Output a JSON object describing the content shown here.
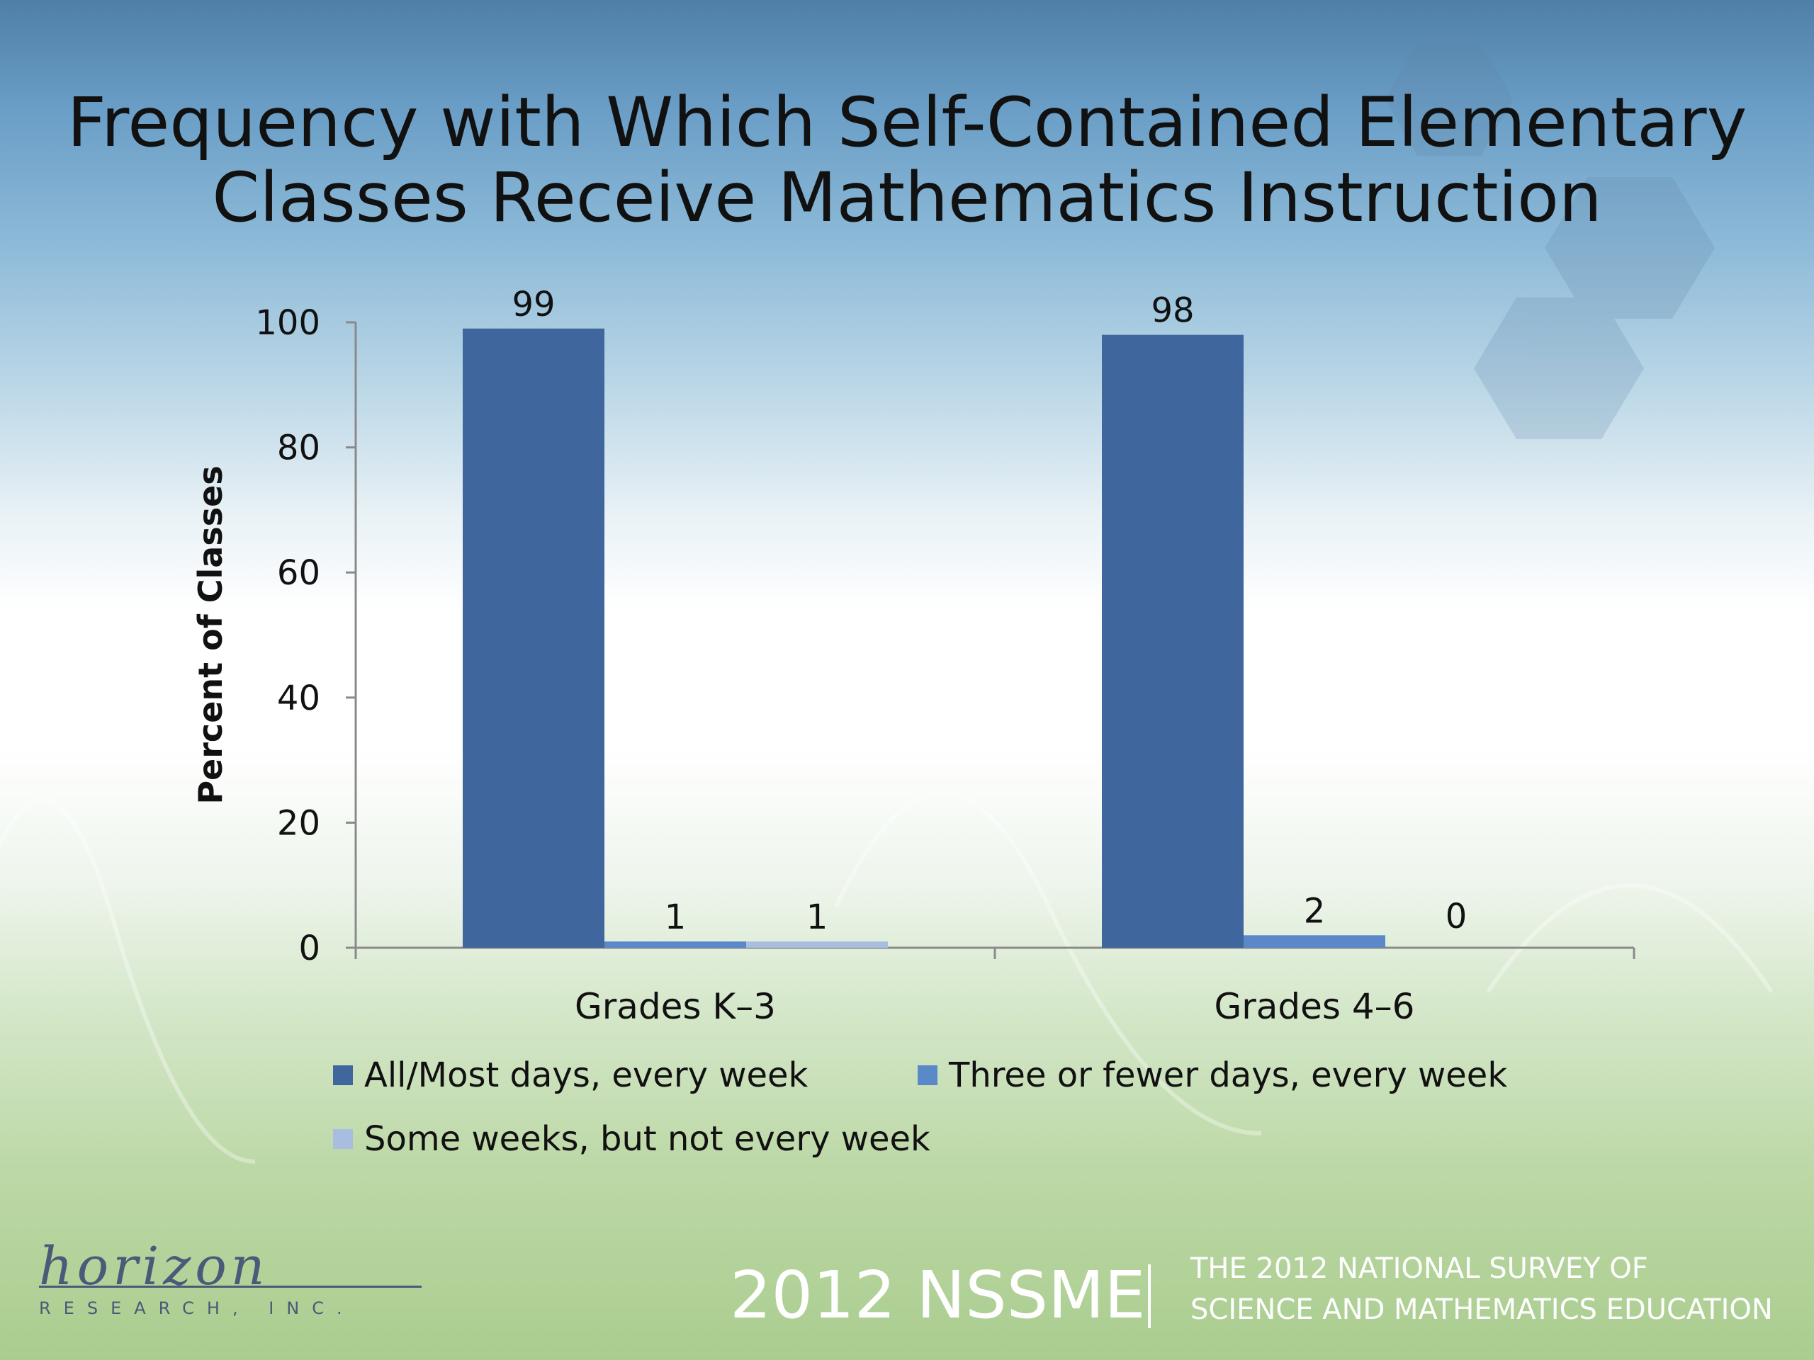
{
  "slide": {
    "title_lines": [
      "Frequency with Which Self-Contained Elementary",
      "Classes Receive Mathematics Instruction"
    ]
  },
  "chart_data": {
    "type": "bar",
    "title": "Frequency with Which Self-Contained Elementary Classes Receive Mathematics Instruction",
    "categories": [
      "Grades K–3",
      "Grades 4–6"
    ],
    "series": [
      {
        "name": "All/Most days, every week",
        "values": [
          99,
          98
        ],
        "color": "#3f679e"
      },
      {
        "name": "Three or fewer days, every week",
        "values": [
          1,
          2
        ],
        "color": "#5a88c8"
      },
      {
        "name": "Some weeks, but not every week",
        "values": [
          1,
          0
        ],
        "color": "#a9bde0"
      }
    ],
    "ylabel": "Percent of Classes",
    "xlabel": "",
    "ylim": [
      0,
      100
    ],
    "yticks": [
      0,
      20,
      40,
      60,
      80,
      100
    ],
    "grid": false,
    "legend_position": "bottom",
    "data_labels": true
  },
  "footer": {
    "logo_script": "horizon",
    "logo_sub": "RESEARCH, INC.",
    "survey_label": "2012 NSSME",
    "survey_lines": [
      "THE 2012 NATIONAL SURVEY OF",
      "SCIENCE AND MATHEMATICS EDUCATION"
    ]
  }
}
